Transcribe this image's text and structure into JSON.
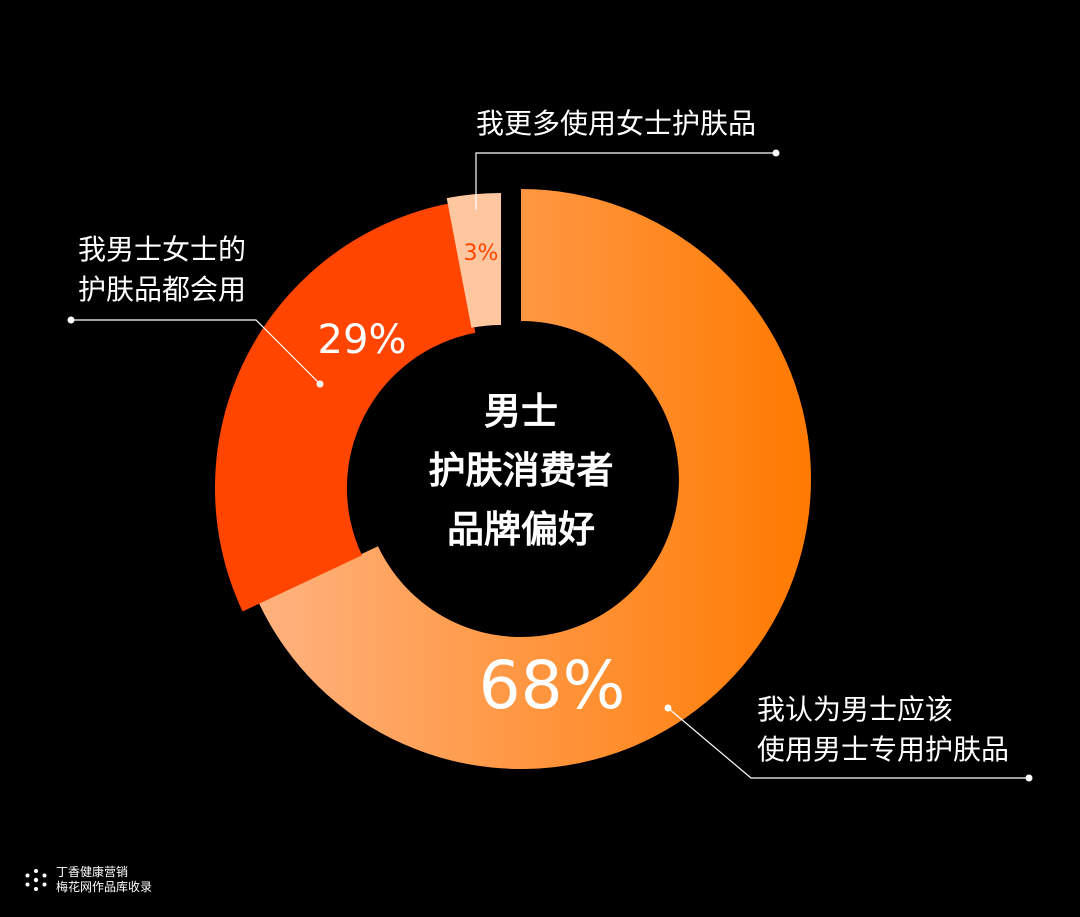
{
  "chart_data": {
    "type": "donut",
    "title": "男士护肤消费者品牌偏好",
    "center_lines": [
      "男士",
      "护肤消费者",
      "品牌偏好"
    ],
    "slices": [
      {
        "label": [
          "我认为男士应该",
          "使用男士专用护肤品"
        ],
        "value": 68,
        "value_label": "68%",
        "color_start": "#ffb27f",
        "color_end": "#ff7a00"
      },
      {
        "label": [
          "我男士女士的",
          "护肤品都会用"
        ],
        "value": 29,
        "value_label": "29%",
        "color": "#ff4500"
      },
      {
        "label": [
          "我更多使用女士护肤品"
        ],
        "value": 3,
        "value_label": "3%",
        "color": "#ffc7a0"
      }
    ]
  },
  "footer": {
    "brand": "丁香健康营销",
    "note": "梅花网作品库收录"
  },
  "colors": {
    "background": "#000000",
    "small_label": "#ff4500"
  }
}
